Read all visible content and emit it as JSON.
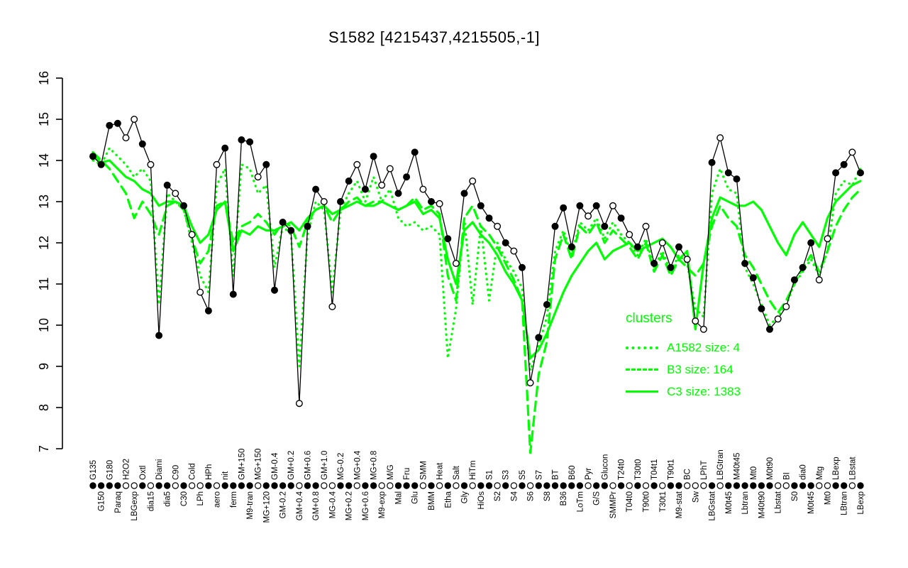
{
  "colors": {
    "cluster_green": "#00ff00",
    "series_black": "#000000",
    "background": "#ffffff"
  },
  "chart_data": {
    "type": "line",
    "title": "S1582 [4215437,4215505,-1]",
    "xlabel": "",
    "ylabel": "",
    "ylim": [
      7,
      16
    ],
    "yticks": [
      7,
      8,
      9,
      10,
      11,
      12,
      13,
      14,
      15,
      16
    ],
    "grid": false,
    "legend": {
      "title": "clusters",
      "position": "right-lower",
      "text_color": "#00ff00"
    },
    "categories": [
      "G135",
      "G150",
      "G180",
      "Paraq",
      "H2O2",
      "LBGexp",
      "Oxtl",
      "dia15",
      "Diami",
      "dia5",
      "C90",
      "C30",
      "Cold",
      "LPh",
      "HPh",
      "aero",
      "nit",
      "ferm",
      "GM+150",
      "M9-tran",
      "MG+150",
      "MG+120",
      "GM-0.4",
      "GM-0.2",
      "GM+0.2",
      "GM+0.4",
      "GM+0.6",
      "GM+0.8",
      "GM+1.0",
      "MG-0.4",
      "MG-0.2",
      "MG+0.2",
      "MG+0.4",
      "MG+0.6",
      "MG+0.8",
      "M9-exp",
      "M/G",
      "Mal",
      "Fru",
      "Glu",
      "SMM",
      "BMM",
      "Heat",
      "Etha",
      "Salt",
      "Gly",
      "HiTm",
      "HiOs",
      "S1",
      "S2",
      "S3",
      "S4",
      "S5",
      "S6",
      "S7",
      "S8",
      "BT",
      "B36",
      "B60",
      "LoTm",
      "Pyr",
      "G/S",
      "Glucon",
      "SMMPr",
      "T24t0",
      "T04t0",
      "T30t0",
      "T90t0",
      "T04t1",
      "T30t1",
      "T90t1",
      "M9-stat",
      "BC",
      "Sw",
      "LPhT",
      "LBGstat",
      "LBGtran",
      "M0t45",
      "M40t45",
      "Lbtran",
      "Mt0",
      "M40t90",
      "M0t90",
      "Lbstat",
      "BI",
      "S0",
      "dia0",
      "M0t45",
      "Mtg",
      "Mt0",
      "LBexp",
      "LBtran",
      "LBstat",
      "LBexp"
    ],
    "series": [
      {
        "name": "S1582",
        "role": "gene-profile",
        "color": "#000000",
        "line_style": "solid",
        "line_width": 1.3,
        "marker": "circle",
        "values": [
          14.1,
          13.9,
          14.85,
          14.9,
          14.55,
          15.0,
          14.4,
          13.9,
          9.75,
          13.4,
          13.2,
          12.9,
          12.2,
          10.8,
          10.35,
          13.9,
          14.3,
          10.75,
          14.5,
          14.45,
          13.6,
          13.9,
          10.85,
          12.5,
          12.3,
          8.1,
          12.4,
          13.3,
          13.0,
          10.45,
          13.0,
          13.5,
          13.9,
          13.3,
          14.1,
          13.4,
          13.8,
          13.2,
          13.6,
          14.2,
          13.3,
          13.0,
          12.95,
          12.1,
          11.5,
          13.2,
          13.5,
          12.9,
          12.6,
          12.4,
          12.0,
          11.8,
          11.4,
          8.6,
          9.7,
          10.5,
          12.4,
          12.85,
          11.9,
          12.9,
          12.65,
          12.9,
          12.4,
          12.9,
          12.6,
          12.2,
          11.9,
          12.4,
          11.5,
          12.0,
          11.4,
          11.9,
          11.6,
          10.1,
          9.9,
          13.95,
          14.55,
          13.7,
          13.55,
          11.5,
          11.15,
          10.4,
          9.9,
          10.15,
          10.45,
          11.1,
          11.4,
          12.0,
          11.1,
          12.1,
          13.7,
          13.9,
          14.2,
          13.7
        ],
        "marker_filled": [
          1,
          1,
          1,
          1,
          0,
          0,
          1,
          0,
          1,
          1,
          0,
          1,
          0,
          0,
          1,
          0,
          1,
          1,
          1,
          1,
          0,
          1,
          1,
          1,
          1,
          0,
          1,
          1,
          0,
          0,
          1,
          1,
          0,
          1,
          1,
          0,
          0,
          1,
          1,
          1,
          0,
          1,
          0,
          1,
          0,
          1,
          0,
          1,
          1,
          0,
          1,
          0,
          1,
          0,
          1,
          1,
          1,
          1,
          1,
          1,
          0,
          1,
          1,
          0,
          1,
          0,
          1,
          0,
          1,
          0,
          1,
          1,
          0,
          0,
          0,
          1,
          0,
          1,
          1,
          1,
          1,
          1,
          1,
          0,
          0,
          1,
          1,
          1,
          0,
          0,
          1,
          1,
          0,
          1
        ]
      },
      {
        "name": "A1582 size: 4",
        "role": "cluster-mean",
        "color": "#00ff00",
        "line_style": "dotted",
        "line_width": 3.2,
        "values": [
          14.0,
          13.9,
          14.3,
          14.1,
          13.9,
          13.6,
          13.8,
          13.5,
          10.5,
          13.2,
          13.0,
          12.8,
          12.0,
          11.2,
          10.8,
          13.4,
          13.8,
          11.2,
          13.9,
          13.8,
          13.2,
          13.4,
          11.4,
          12.4,
          12.2,
          9.0,
          12.2,
          13.0,
          12.8,
          10.8,
          12.8,
          13.2,
          13.5,
          13.0,
          13.6,
          13.0,
          13.3,
          12.6,
          12.4,
          12.5,
          12.3,
          12.4,
          12.2,
          9.2,
          10.4,
          12.6,
          10.5,
          12.4,
          10.6,
          12.0,
          11.6,
          11.3,
          10.9,
          8.9,
          9.5,
          10.2,
          11.8,
          12.3,
          11.7,
          12.5,
          12.3,
          12.6,
          12.1,
          12.5,
          12.2,
          12.0,
          11.7,
          12.1,
          11.4,
          11.8,
          11.3,
          11.7,
          11.5,
          10.4,
          10.2,
          13.2,
          13.8,
          13.3,
          13.2,
          11.4,
          11.0,
          10.5,
          10.0,
          10.2,
          10.5,
          11.0,
          11.3,
          11.6,
          11.2,
          11.8,
          13.2,
          13.5,
          13.4,
          13.8
        ]
      },
      {
        "name": "B3 size: 164",
        "role": "cluster-mean",
        "color": "#00ff00",
        "line_style": "dashed",
        "line_width": 3.2,
        "values": [
          14.2,
          14.0,
          13.8,
          13.5,
          13.2,
          12.6,
          13.0,
          12.7,
          12.2,
          12.9,
          13.0,
          12.8,
          12.1,
          11.5,
          11.8,
          12.9,
          13.0,
          12.0,
          12.4,
          12.5,
          12.7,
          12.5,
          12.2,
          12.5,
          12.4,
          11.9,
          12.5,
          12.8,
          12.9,
          12.5,
          12.8,
          13.0,
          13.1,
          12.9,
          13.0,
          13.0,
          12.9,
          12.8,
          12.9,
          13.1,
          12.8,
          12.9,
          12.7,
          11.2,
          10.6,
          12.6,
          12.9,
          12.4,
          12.2,
          11.9,
          11.5,
          11.1,
          10.6,
          6.9,
          8.8,
          9.6,
          11.6,
          12.2,
          11.6,
          12.4,
          12.2,
          12.5,
          12.0,
          12.3,
          12.1,
          11.9,
          11.6,
          12.0,
          11.3,
          11.7,
          11.2,
          11.6,
          11.4,
          11.2,
          11.5,
          12.4,
          12.9,
          12.6,
          12.4,
          11.7,
          11.4,
          11.0,
          10.6,
          10.3,
          10.6,
          11.0,
          11.4,
          11.7,
          11.3,
          11.8,
          12.4,
          12.8,
          13.1,
          13.3
        ]
      },
      {
        "name": "C3 size: 1383",
        "role": "cluster-mean",
        "color": "#00ff00",
        "line_style": "solid",
        "line_width": 3.2,
        "values": [
          14.1,
          13.95,
          14.0,
          13.8,
          13.6,
          13.5,
          13.3,
          13.2,
          12.9,
          13.0,
          13.0,
          12.9,
          12.4,
          12.0,
          12.2,
          12.8,
          13.0,
          11.8,
          12.3,
          12.2,
          12.4,
          12.3,
          12.3,
          12.4,
          12.5,
          12.3,
          12.6,
          12.8,
          12.9,
          12.7,
          12.8,
          12.9,
          13.0,
          12.9,
          12.9,
          13.0,
          12.9,
          12.8,
          12.9,
          13.0,
          12.7,
          12.8,
          12.6,
          11.6,
          11.0,
          12.3,
          12.5,
          12.2,
          12.0,
          11.7,
          11.3,
          11.0,
          10.6,
          9.2,
          9.4,
          9.8,
          10.3,
          10.8,
          11.2,
          11.5,
          11.8,
          12.0,
          11.6,
          11.8,
          11.9,
          12.0,
          11.8,
          11.9,
          12.0,
          12.1,
          11.9,
          11.6,
          11.8,
          9.9,
          11.5,
          12.6,
          13.1,
          13.0,
          12.9,
          12.9,
          13.0,
          12.8,
          12.4,
          12.0,
          11.7,
          12.2,
          12.5,
          12.2,
          11.9,
          12.6,
          13.0,
          13.2,
          13.4,
          13.5
        ]
      }
    ]
  }
}
